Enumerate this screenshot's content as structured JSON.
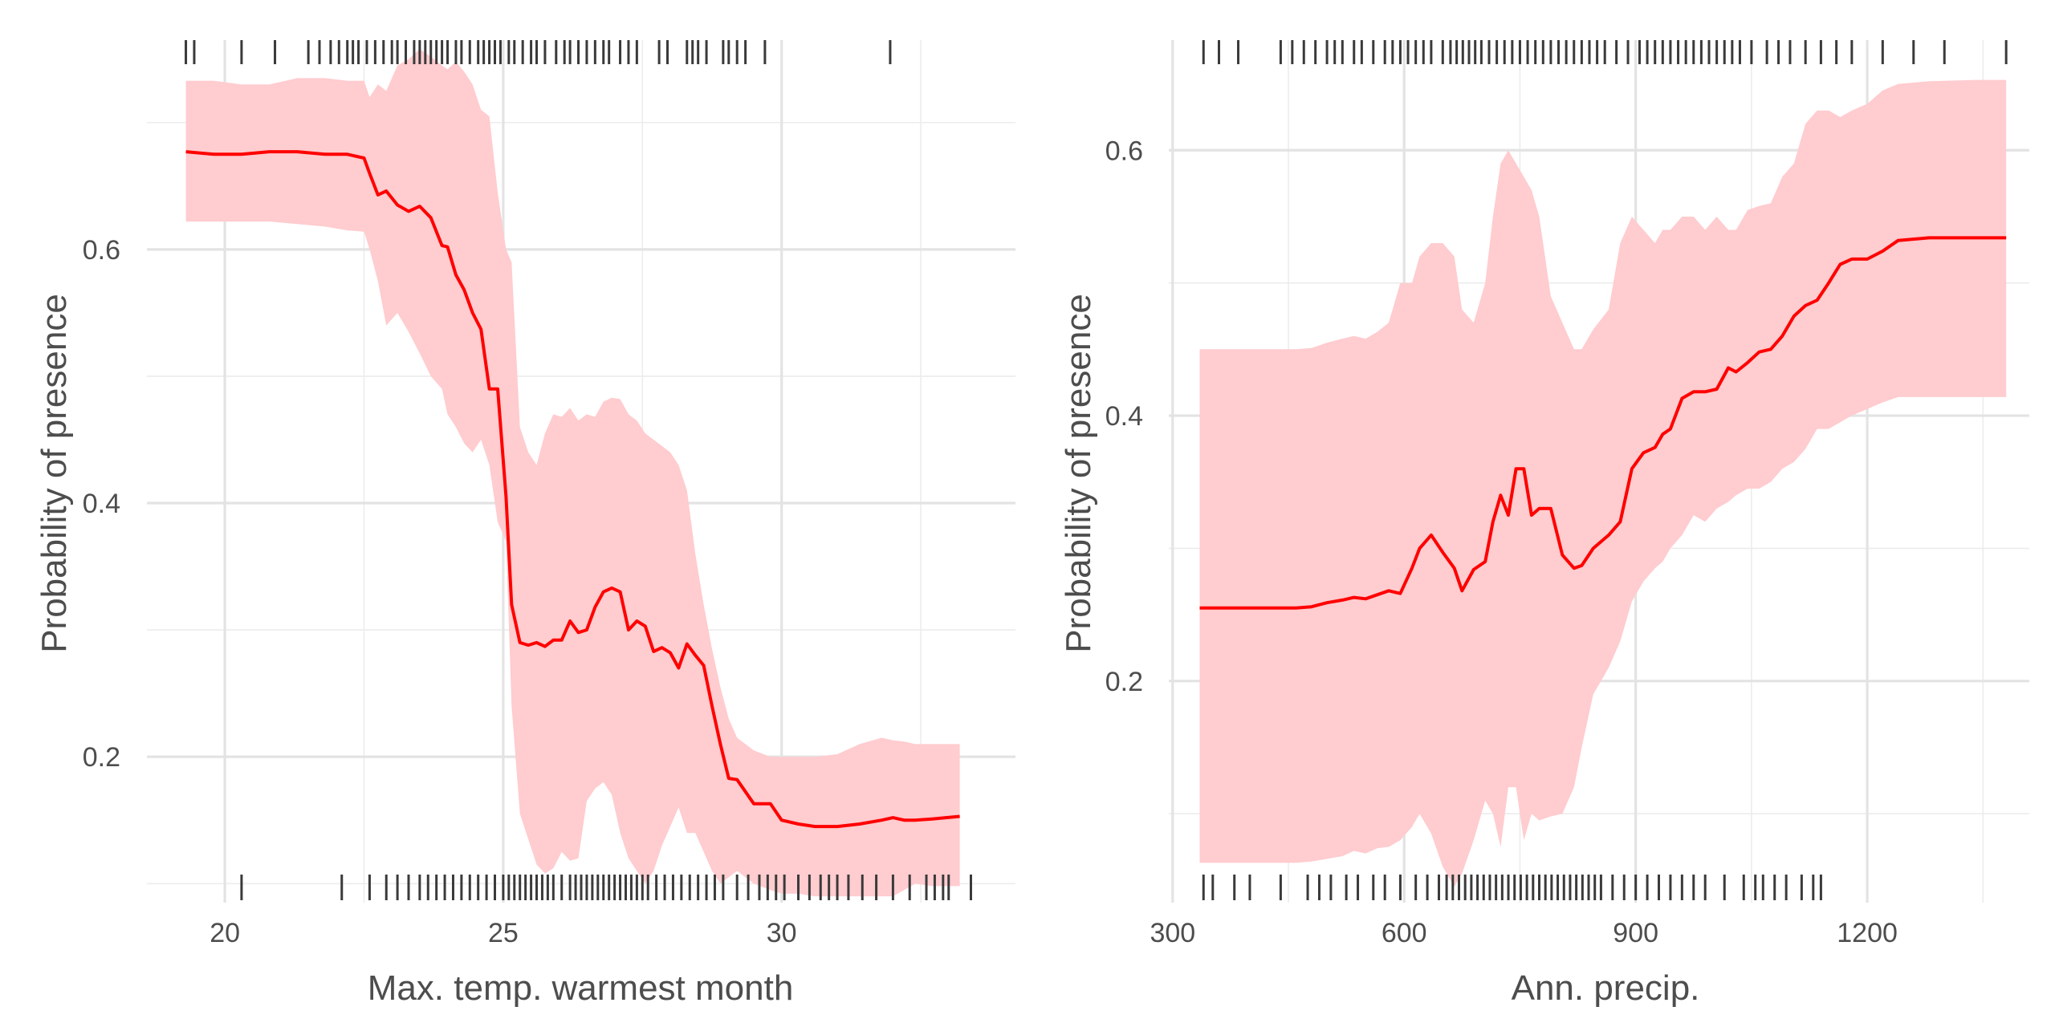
{
  "chart_data": [
    {
      "type": "line",
      "xlabel": "Max. temp. warmest month",
      "ylabel": "Probability of presence",
      "xlim": [
        18.6,
        34.2
      ],
      "ylim": [
        0.085,
        0.765
      ],
      "x_major_ticks": [
        20,
        25,
        30
      ],
      "x_minor_ticks": [
        22.5,
        27.5,
        32.5
      ],
      "y_major_ticks": [
        0.2,
        0.4,
        0.6
      ],
      "y_minor_ticks": [
        0.1,
        0.3,
        0.5,
        0.7
      ],
      "x_tick_labels": [
        "20",
        "25",
        "30"
      ],
      "y_tick_labels": [
        "0.2",
        "0.4",
        "0.6"
      ],
      "grid": true,
      "series": [
        {
          "x": [
            19.3,
            19.8,
            20.3,
            20.8,
            21.3,
            21.8,
            22.2,
            22.5,
            22.6,
            22.75,
            22.9,
            23.1,
            23.3,
            23.5,
            23.7,
            23.9,
            24.0,
            24.15,
            24.3,
            24.45,
            24.6,
            24.75,
            24.9,
            25.05,
            25.15,
            25.3,
            25.45,
            25.6,
            25.75,
            25.9,
            26.05,
            26.2,
            26.35,
            26.5,
            26.65,
            26.8,
            26.95,
            27.1,
            27.25,
            27.4,
            27.55,
            27.7,
            27.85,
            28.0,
            28.15,
            28.3,
            28.45,
            28.6,
            28.75,
            28.9,
            29.05,
            29.2,
            29.5,
            29.8,
            30.0,
            30.3,
            30.6,
            31.0,
            31.4,
            31.8,
            32.0,
            32.2,
            32.4,
            32.7,
            33.2
          ],
          "y": [
            0.677,
            0.675,
            0.675,
            0.677,
            0.677,
            0.675,
            0.675,
            0.672,
            0.66,
            0.643,
            0.646,
            0.635,
            0.63,
            0.634,
            0.625,
            0.603,
            0.602,
            0.58,
            0.568,
            0.55,
            0.537,
            0.49,
            0.49,
            0.405,
            0.32,
            0.29,
            0.288,
            0.29,
            0.287,
            0.292,
            0.292,
            0.307,
            0.298,
            0.3,
            0.318,
            0.33,
            0.333,
            0.33,
            0.3,
            0.307,
            0.303,
            0.283,
            0.286,
            0.282,
            0.27,
            0.289,
            0.28,
            0.272,
            0.24,
            0.21,
            0.183,
            0.182,
            0.163,
            0.163,
            0.15,
            0.147,
            0.145,
            0.145,
            0.147,
            0.15,
            0.152,
            0.15,
            0.15,
            0.151,
            0.153
          ],
          "lower": [
            0.622,
            0.622,
            0.622,
            0.622,
            0.62,
            0.618,
            0.615,
            0.614,
            0.6,
            0.575,
            0.54,
            0.55,
            0.535,
            0.518,
            0.5,
            0.49,
            0.47,
            0.46,
            0.447,
            0.44,
            0.45,
            0.43,
            0.385,
            0.37,
            0.24,
            0.155,
            0.135,
            0.115,
            0.108,
            0.112,
            0.125,
            0.118,
            0.12,
            0.165,
            0.175,
            0.18,
            0.17,
            0.14,
            0.12,
            0.11,
            0.1,
            0.11,
            0.13,
            0.145,
            0.16,
            0.14,
            0.14,
            0.125,
            0.11,
            0.1,
            0.105,
            0.11,
            0.1,
            0.095,
            0.092,
            0.092,
            0.09,
            0.09,
            0.09,
            0.09,
            0.09,
            0.095,
            0.1,
            0.098,
            0.098
          ],
          "upper": [
            0.733,
            0.733,
            0.73,
            0.73,
            0.735,
            0.735,
            0.733,
            0.733,
            0.72,
            0.73,
            0.725,
            0.745,
            0.75,
            0.758,
            0.752,
            0.745,
            0.742,
            0.748,
            0.74,
            0.73,
            0.71,
            0.705,
            0.645,
            0.6,
            0.59,
            0.46,
            0.44,
            0.43,
            0.455,
            0.47,
            0.468,
            0.475,
            0.465,
            0.47,
            0.468,
            0.48,
            0.483,
            0.482,
            0.47,
            0.465,
            0.455,
            0.45,
            0.445,
            0.44,
            0.43,
            0.41,
            0.36,
            0.32,
            0.285,
            0.255,
            0.23,
            0.215,
            0.205,
            0.2,
            0.2,
            0.2,
            0.2,
            0.202,
            0.21,
            0.215,
            0.213,
            0.212,
            0.21,
            0.21,
            0.21
          ]
        }
      ],
      "rug_top": [
        19.3,
        19.45,
        20.3,
        20.9,
        21.5,
        21.7,
        21.9,
        22.05,
        22.2,
        22.3,
        22.4,
        22.55,
        22.7,
        22.85,
        23.0,
        23.1,
        23.25,
        23.4,
        23.5,
        23.6,
        23.7,
        23.8,
        23.9,
        24.0,
        24.15,
        24.25,
        24.4,
        24.55,
        24.65,
        24.75,
        24.85,
        24.95,
        25.1,
        25.2,
        25.35,
        25.5,
        25.6,
        25.75,
        25.95,
        26.1,
        26.2,
        26.35,
        26.5,
        26.65,
        26.8,
        26.9,
        27.1,
        27.25,
        27.4,
        27.8,
        27.95,
        28.3,
        28.4,
        28.5,
        28.65,
        28.95,
        29.05,
        29.2,
        29.35,
        29.7,
        31.95
      ],
      "rug_bottom": [
        20.3,
        22.1,
        22.6,
        22.9,
        23.1,
        23.3,
        23.5,
        23.65,
        23.8,
        23.95,
        24.1,
        24.25,
        24.4,
        24.55,
        24.7,
        24.85,
        25.0,
        25.1,
        25.2,
        25.3,
        25.4,
        25.5,
        25.6,
        25.7,
        25.8,
        25.9,
        26.05,
        26.2,
        26.3,
        26.4,
        26.5,
        26.6,
        26.7,
        26.8,
        26.9,
        27.0,
        27.1,
        27.2,
        27.3,
        27.4,
        27.5,
        27.6,
        27.75,
        27.9,
        28.05,
        28.2,
        28.35,
        28.5,
        28.65,
        28.8,
        28.95,
        29.2,
        29.4,
        29.6,
        29.75,
        29.9,
        30.05,
        30.3,
        30.5,
        30.7,
        30.85,
        31.0,
        31.2,
        31.45,
        31.7,
        32.0,
        32.3,
        32.6,
        32.75,
        32.9,
        33.0,
        33.4
      ]
    },
    {
      "type": "line",
      "xlabel": "Ann. precip.",
      "ylabel": "Probability of presence",
      "xlim": [
        295,
        1410
      ],
      "ylim": [
        0.033,
        0.683
      ],
      "x_major_ticks": [
        300,
        600,
        900,
        1200
      ],
      "x_minor_ticks": [
        450,
        750,
        1050,
        1350
      ],
      "y_major_ticks": [
        0.2,
        0.4,
        0.6
      ],
      "y_minor_ticks": [
        0.1,
        0.3,
        0.5
      ],
      "x_tick_labels": [
        "300",
        "600",
        "900",
        "1200"
      ],
      "y_tick_labels": [
        "0.2",
        "0.4",
        "0.6"
      ],
      "grid": true,
      "series": [
        {
          "x": [
            335,
            380,
            420,
            460,
            480,
            500,
            520,
            535,
            550,
            565,
            580,
            595,
            610,
            620,
            635,
            650,
            665,
            675,
            690,
            705,
            715,
            725,
            735,
            745,
            755,
            765,
            775,
            790,
            805,
            820,
            830,
            845,
            865,
            880,
            895,
            910,
            925,
            935,
            945,
            960,
            975,
            990,
            1005,
            1020,
            1030,
            1045,
            1060,
            1075,
            1090,
            1105,
            1120,
            1135,
            1150,
            1165,
            1180,
            1200,
            1220,
            1240,
            1280,
            1340,
            1380
          ],
          "y": [
            0.255,
            0.255,
            0.255,
            0.255,
            0.256,
            0.259,
            0.261,
            0.263,
            0.262,
            0.265,
            0.268,
            0.266,
            0.285,
            0.3,
            0.31,
            0.297,
            0.285,
            0.268,
            0.284,
            0.29,
            0.32,
            0.34,
            0.325,
            0.36,
            0.36,
            0.325,
            0.33,
            0.33,
            0.295,
            0.285,
            0.287,
            0.3,
            0.31,
            0.32,
            0.36,
            0.372,
            0.376,
            0.386,
            0.39,
            0.413,
            0.418,
            0.418,
            0.42,
            0.436,
            0.433,
            0.44,
            0.448,
            0.45,
            0.46,
            0.475,
            0.483,
            0.487,
            0.5,
            0.514,
            0.518,
            0.518,
            0.524,
            0.532,
            0.534,
            0.534,
            0.534
          ],
          "lower": [
            0.063,
            0.063,
            0.063,
            0.063,
            0.064,
            0.066,
            0.068,
            0.072,
            0.07,
            0.074,
            0.075,
            0.08,
            0.09,
            0.1,
            0.085,
            0.06,
            0.045,
            0.055,
            0.08,
            0.11,
            0.1,
            0.075,
            0.12,
            0.12,
            0.08,
            0.1,
            0.095,
            0.098,
            0.1,
            0.12,
            0.15,
            0.19,
            0.21,
            0.23,
            0.26,
            0.275,
            0.285,
            0.29,
            0.3,
            0.31,
            0.325,
            0.32,
            0.33,
            0.335,
            0.34,
            0.345,
            0.345,
            0.35,
            0.36,
            0.365,
            0.375,
            0.39,
            0.39,
            0.395,
            0.4,
            0.405,
            0.41,
            0.414,
            0.414,
            0.414,
            0.414
          ],
          "upper": [
            0.45,
            0.45,
            0.45,
            0.45,
            0.451,
            0.455,
            0.458,
            0.46,
            0.458,
            0.463,
            0.47,
            0.5,
            0.5,
            0.52,
            0.53,
            0.53,
            0.52,
            0.48,
            0.47,
            0.5,
            0.55,
            0.59,
            0.6,
            0.59,
            0.58,
            0.57,
            0.55,
            0.49,
            0.47,
            0.45,
            0.45,
            0.465,
            0.48,
            0.53,
            0.55,
            0.54,
            0.53,
            0.54,
            0.54,
            0.55,
            0.55,
            0.54,
            0.55,
            0.54,
            0.54,
            0.555,
            0.558,
            0.56,
            0.58,
            0.59,
            0.62,
            0.63,
            0.63,
            0.625,
            0.63,
            0.635,
            0.645,
            0.65,
            0.652,
            0.653,
            0.653
          ]
        }
      ],
      "rug_top": [
        340,
        360,
        385,
        440,
        455,
        470,
        485,
        500,
        510,
        520,
        535,
        545,
        560,
        575,
        585,
        595,
        605,
        615,
        625,
        635,
        650,
        660,
        668,
        676,
        684,
        692,
        700,
        710,
        720,
        730,
        740,
        750,
        760,
        770,
        780,
        790,
        800,
        810,
        820,
        830,
        840,
        850,
        860,
        875,
        890,
        905,
        915,
        925,
        935,
        945,
        955,
        965,
        975,
        985,
        995,
        1005,
        1015,
        1025,
        1035,
        1050,
        1070,
        1085,
        1100,
        1120,
        1140,
        1160,
        1180,
        1220,
        1260,
        1300,
        1380
      ],
      "rug_bottom": [
        340,
        352,
        380,
        400,
        440,
        475,
        490,
        505,
        525,
        540,
        560,
        575,
        595,
        615,
        630,
        645,
        655,
        663,
        671,
        679,
        687,
        695,
        703,
        711,
        719,
        727,
        735,
        743,
        751,
        759,
        767,
        775,
        783,
        791,
        799,
        807,
        815,
        823,
        831,
        839,
        847,
        855,
        870,
        885,
        900,
        915,
        930,
        945,
        960,
        975,
        990,
        1015,
        1040,
        1055,
        1065,
        1080,
        1095,
        1115,
        1130,
        1140
      ]
    }
  ]
}
